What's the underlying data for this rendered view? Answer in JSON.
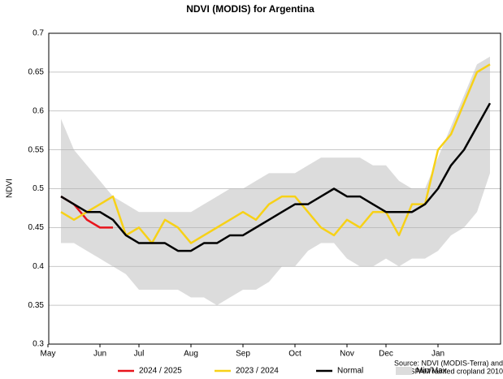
{
  "chart_data": {
    "type": "line",
    "title": "NDVI (MODIS) for Argentina",
    "y_label": "NDVI",
    "source": [
      "Source: NDVI (MODIS-Terra) and",
      "SPAM rainfed cropland 2010"
    ],
    "categories": [
      "May",
      null,
      null,
      null,
      "Jun",
      null,
      null,
      "Jul",
      null,
      null,
      null,
      "Aug",
      null,
      null,
      null,
      "Sep",
      null,
      null,
      null,
      "Oct",
      null,
      null,
      null,
      "Nov",
      null,
      null,
      "Dec",
      null,
      null,
      null,
      "Jan",
      null,
      null,
      null,
      null
    ],
    "ylim": [
      0.3,
      0.7
    ],
    "yticks": [
      0.3,
      0.35,
      0.4,
      0.45,
      0.5,
      0.55,
      0.6,
      0.65,
      0.7
    ],
    "grid": true,
    "legend": "bottom",
    "band": {
      "name": "Min/Max",
      "color": "#dcdcdc",
      "upper": [
        null,
        0.59,
        0.55,
        0.53,
        0.51,
        0.49,
        0.48,
        0.47,
        0.47,
        0.47,
        0.47,
        0.47,
        0.48,
        0.49,
        0.5,
        0.5,
        0.51,
        0.52,
        0.52,
        0.52,
        0.53,
        0.54,
        0.54,
        0.54,
        0.54,
        0.53,
        0.53,
        0.51,
        0.5,
        0.5,
        0.54,
        0.58,
        0.62,
        0.66,
        0.67
      ],
      "lower": [
        null,
        0.43,
        0.43,
        0.42,
        0.41,
        0.4,
        0.39,
        0.37,
        0.37,
        0.37,
        0.37,
        0.36,
        0.36,
        0.35,
        0.36,
        0.37,
        0.37,
        0.38,
        0.4,
        0.4,
        0.42,
        0.43,
        0.43,
        0.41,
        0.4,
        0.4,
        0.41,
        0.4,
        0.41,
        0.41,
        0.42,
        0.44,
        0.45,
        0.47,
        0.52
      ]
    },
    "series": [
      {
        "name": "2024 / 2025",
        "color": "#e8141c",
        "values": [
          null,
          0.49,
          0.48,
          0.46,
          0.45,
          0.45,
          null,
          null,
          null,
          null,
          null,
          null,
          null,
          null,
          null,
          null,
          null,
          null,
          null,
          null,
          null,
          null,
          null,
          null,
          null,
          null,
          null,
          null,
          null,
          null,
          null,
          null,
          null,
          null,
          null
        ]
      },
      {
        "name": "2023 / 2024",
        "color": "#f7d117",
        "values": [
          null,
          0.47,
          0.46,
          0.47,
          0.48,
          0.49,
          0.44,
          0.45,
          0.43,
          0.46,
          0.45,
          0.43,
          0.44,
          0.45,
          0.46,
          0.47,
          0.46,
          0.48,
          0.49,
          0.49,
          0.47,
          0.45,
          0.44,
          0.46,
          0.45,
          0.47,
          0.47,
          0.44,
          0.48,
          0.48,
          0.55,
          0.57,
          0.61,
          0.65,
          0.66
        ]
      },
      {
        "name": "Normal",
        "color": "#000000",
        "values": [
          null,
          0.49,
          0.48,
          0.47,
          0.47,
          0.46,
          0.44,
          0.43,
          0.43,
          0.43,
          0.42,
          0.42,
          0.43,
          0.43,
          0.44,
          0.44,
          0.45,
          0.46,
          0.47,
          0.48,
          0.48,
          0.49,
          0.5,
          0.49,
          0.49,
          0.48,
          0.47,
          0.47,
          0.47,
          0.48,
          0.5,
          0.53,
          0.55,
          0.58,
          0.61
        ]
      }
    ]
  }
}
